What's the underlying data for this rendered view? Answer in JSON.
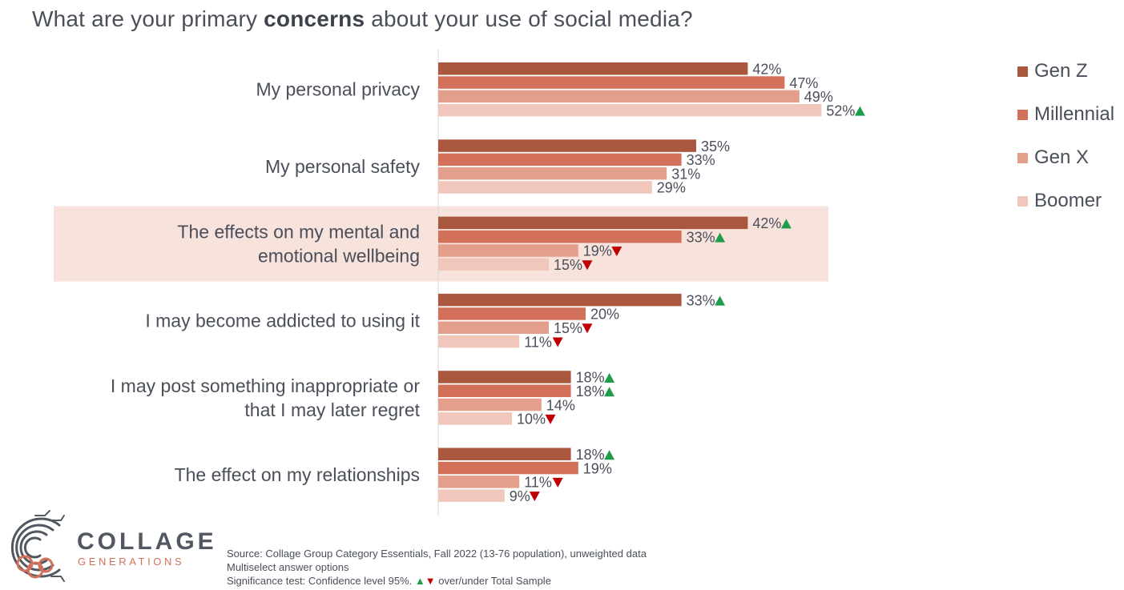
{
  "title": {
    "prefix": "What are your primary ",
    "emphasis": "concerns",
    "suffix": " about your use of social media?"
  },
  "legend": [
    {
      "label": "Gen Z",
      "color": "#a9573d"
    },
    {
      "label": "Millennial",
      "color": "#d2705a"
    },
    {
      "label": "Gen X",
      "color": "#e49e8c"
    },
    {
      "label": "Boomer",
      "color": "#f0c7ba"
    }
  ],
  "chart_data": {
    "type": "bar",
    "orientation": "horizontal",
    "title": "What are your primary concerns about your use of social media?",
    "value_suffix": "%",
    "xlim": [
      0,
      60
    ],
    "highlight_category": 2,
    "highlight_color": "#f7e2dc",
    "categories": [
      [
        "My personal privacy"
      ],
      [
        "My personal safety"
      ],
      [
        "The effects on my mental and",
        "emotional wellbeing"
      ],
      [
        "I may become addicted to using it"
      ],
      [
        "I may post something inappropriate or",
        "that I may later regret"
      ],
      [
        "The effect on my relationships"
      ]
    ],
    "series": [
      {
        "name": "Gen Z",
        "color": "#a9573d",
        "values": [
          42,
          35,
          42,
          33,
          18,
          18
        ],
        "significance": [
          "",
          "",
          "up",
          "up",
          "up",
          "up"
        ]
      },
      {
        "name": "Millennial",
        "color": "#d2705a",
        "values": [
          47,
          33,
          33,
          20,
          18,
          19
        ],
        "significance": [
          "",
          "",
          "up",
          "",
          "up",
          ""
        ]
      },
      {
        "name": "Gen X",
        "color": "#e49e8c",
        "values": [
          49,
          31,
          19,
          15,
          14,
          11
        ],
        "significance": [
          "",
          "",
          "down",
          "down",
          "",
          "down"
        ]
      },
      {
        "name": "Boomer",
        "color": "#f0c7ba",
        "values": [
          52,
          29,
          15,
          11,
          10,
          9
        ],
        "significance": [
          "up",
          "",
          "down",
          "down",
          "down",
          "down"
        ]
      }
    ]
  },
  "logo": {
    "word": "COLLAGE",
    "sub": "GENERATIONS"
  },
  "footnote": {
    "line1": "Source: Collage Group Category Essentials, Fall 2022 (13-76 population), unweighted data",
    "line2": "Multiselect answer options",
    "line3_prefix": "Significance test: Confidence level 95%.",
    "up_symbol": "▲",
    "down_symbol": "▼",
    "line3_suffix": "over/under Total Sample"
  }
}
